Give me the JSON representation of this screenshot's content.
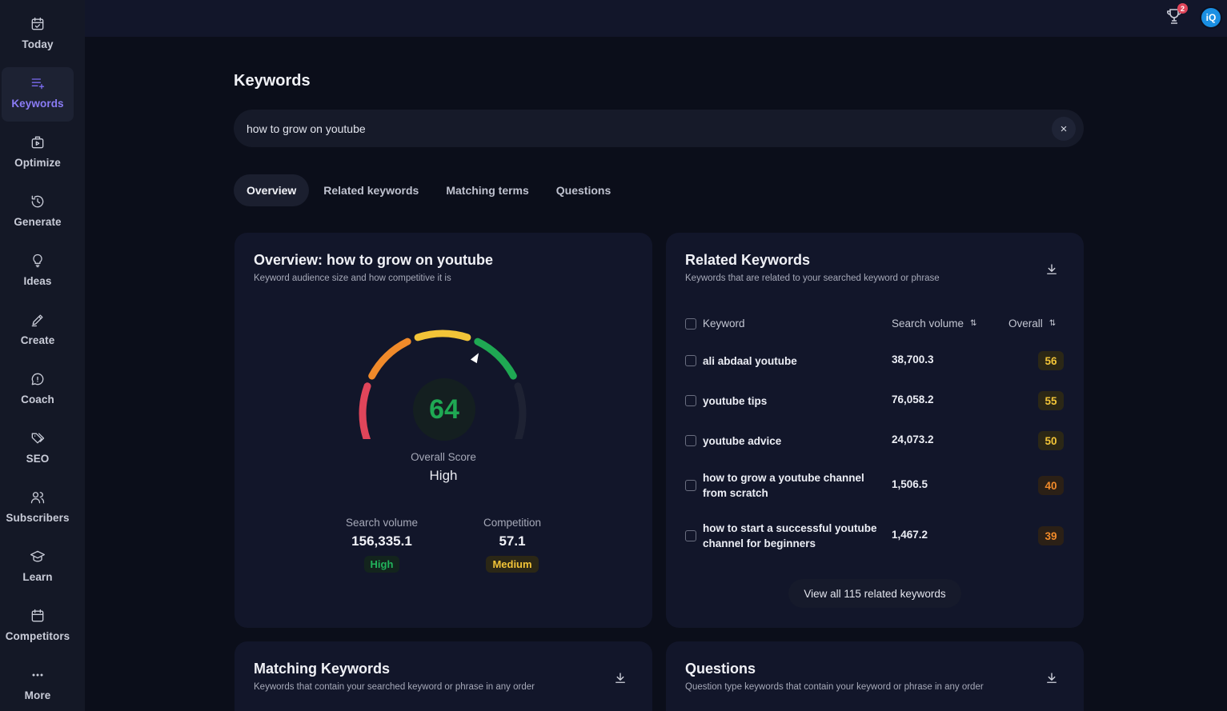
{
  "sidebar": {
    "items": [
      {
        "label": "Today",
        "icon": "calendar-check-icon"
      },
      {
        "label": "Keywords",
        "icon": "keywords-list-icon"
      },
      {
        "label": "Optimize",
        "icon": "optimize-icon"
      },
      {
        "label": "Generate",
        "icon": "refresh-icon"
      },
      {
        "label": "Ideas",
        "icon": "lightbulb-icon"
      },
      {
        "label": "Create",
        "icon": "pencil-icon"
      },
      {
        "label": "Coach",
        "icon": "chat-bubble-icon"
      },
      {
        "label": "SEO",
        "icon": "tags-icon"
      },
      {
        "label": "Subscribers",
        "icon": "users-icon"
      },
      {
        "label": "Learn",
        "icon": "graduation-cap-icon"
      },
      {
        "label": "Competitors",
        "icon": "calendar-icon"
      },
      {
        "label": "More",
        "icon": "more-dots-icon"
      }
    ],
    "active": "Keywords"
  },
  "topbar": {
    "trophy_badge": "2",
    "avatar_text": "iQ"
  },
  "page": {
    "title": "Keywords",
    "search_value": "how to grow on youtube",
    "clear_icon": "×",
    "tabs": [
      "Overview",
      "Related keywords",
      "Matching terms",
      "Questions"
    ],
    "active_tab": "Overview"
  },
  "overview": {
    "title": "Overview: how to grow on youtube",
    "subtitle": "Keyword audience size and how competitive it is",
    "score": "64",
    "score_fraction": 0.64,
    "score_label": "Overall Score",
    "score_level": "High",
    "search_volume": {
      "label": "Search volume",
      "value": "156,335.1",
      "badge": "High"
    },
    "competition": {
      "label": "Competition",
      "value": "57.1",
      "badge": "Medium"
    },
    "colors": {
      "red": "#e0455a",
      "orange": "#f08a2a",
      "yellow": "#f2c438",
      "green": "#1fa853",
      "track": "#1e2233"
    }
  },
  "related": {
    "title": "Related Keywords",
    "subtitle": "Keywords that are related to your searched keyword or phrase",
    "columns": {
      "keyword": "Keyword",
      "volume": "Search volume",
      "overall": "Overall"
    },
    "rows": [
      {
        "keyword": "ali abdaal youtube",
        "volume": "38,700.3",
        "overall": "56"
      },
      {
        "keyword": "youtube tips",
        "volume": "76,058.2",
        "overall": "55"
      },
      {
        "keyword": "youtube advice",
        "volume": "24,073.2",
        "overall": "50"
      },
      {
        "keyword": "how to grow a youtube channel from scratch",
        "volume": "1,506.5",
        "overall": "40"
      },
      {
        "keyword": "how to start a successful youtube channel for beginners",
        "volume": "1,467.2",
        "overall": "39"
      }
    ],
    "view_all": "View all 115 related keywords"
  },
  "matching": {
    "title": "Matching Keywords",
    "subtitle": "Keywords that contain your searched keyword or phrase in any order"
  },
  "questions": {
    "title": "Questions",
    "subtitle": "Question type keywords that contain your keyword or phrase in any order"
  }
}
